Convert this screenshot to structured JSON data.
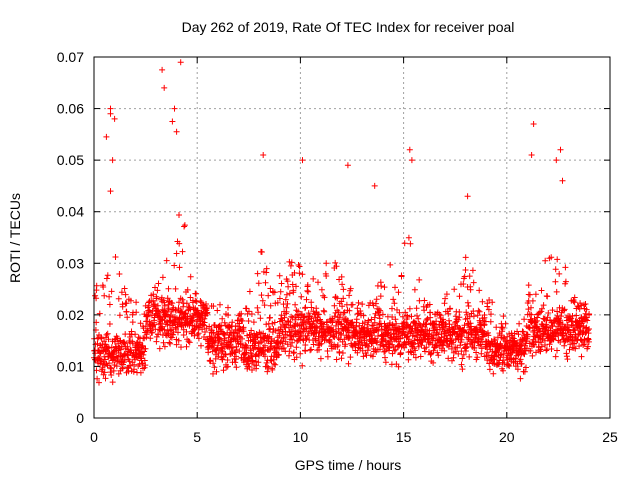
{
  "chart_data": {
    "type": "scatter",
    "title": "Day 262 of 2019, Rate Of TEC Index for receiver poal",
    "xlabel": "GPS time / hours",
    "ylabel": "ROTI / TECUs",
    "xlim": [
      0,
      25
    ],
    "ylim": [
      0,
      0.07
    ],
    "x_ticks": [
      "0",
      "5",
      "10",
      "15",
      "20",
      "25"
    ],
    "y_ticks": [
      "0",
      "0.01",
      "0.02",
      "0.03",
      "0.04",
      "0.05",
      "0.06",
      "0.07"
    ],
    "grid": true,
    "marker": "+",
    "colors": {
      "points": "#ff0000",
      "grid": "#a0a0a0",
      "axes": "#000000"
    },
    "x_range_of_points": [
      0,
      24
    ],
    "series": [
      {
        "values_note": "dense cloud of points, roughly 0.005–0.035 TECU with spikes up to ~0.069",
        "highlights": [
          {
            "x": 0.6,
            "y": 0.0545
          },
          {
            "x": 0.8,
            "y": 0.06
          },
          {
            "x": 0.8,
            "y": 0.059
          },
          {
            "x": 0.9,
            "y": 0.05
          },
          {
            "x": 1.0,
            "y": 0.058
          },
          {
            "x": 0.8,
            "y": 0.044
          },
          {
            "x": 3.3,
            "y": 0.0675
          },
          {
            "x": 3.4,
            "y": 0.064
          },
          {
            "x": 4.2,
            "y": 0.069
          },
          {
            "x": 3.9,
            "y": 0.06
          },
          {
            "x": 3.8,
            "y": 0.0575
          },
          {
            "x": 4.0,
            "y": 0.0555
          },
          {
            "x": 8.2,
            "y": 0.051
          },
          {
            "x": 10.1,
            "y": 0.05
          },
          {
            "x": 12.3,
            "y": 0.049
          },
          {
            "x": 15.3,
            "y": 0.052
          },
          {
            "x": 15.4,
            "y": 0.05
          },
          {
            "x": 21.3,
            "y": 0.057
          },
          {
            "x": 21.2,
            "y": 0.051
          },
          {
            "x": 22.6,
            "y": 0.052
          },
          {
            "x": 22.4,
            "y": 0.05
          },
          {
            "x": 22.7,
            "y": 0.046
          },
          {
            "x": 13.6,
            "y": 0.045
          },
          {
            "x": 18.1,
            "y": 0.043
          }
        ]
      }
    ]
  }
}
